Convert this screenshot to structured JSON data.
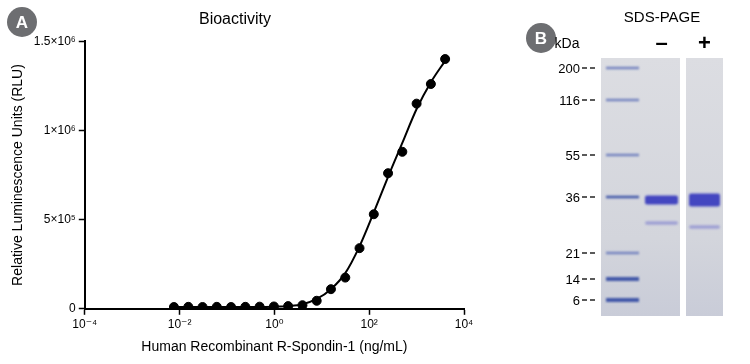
{
  "chart_data": {
    "type": "scatter",
    "panel": "A",
    "title": "Bioactivity",
    "x_label": "Human Recombinant R-Spondin-1 (ng/mL)",
    "y_label": "Relative Luminescence Units (RLU)",
    "log": "x",
    "grid": false,
    "color": "#000000",
    "marker": "circle",
    "x": [
      0.0076,
      0.0153,
      0.0305,
      0.061,
      0.122,
      0.244,
      0.488,
      0.977,
      1.95,
      3.91,
      7.81,
      15.6,
      31.3,
      62.5,
      125,
      250,
      500,
      1000,
      2000,
      4000
    ],
    "values": [
      10000,
      11000,
      10000,
      11000,
      10000,
      11000,
      12000,
      13000,
      15000,
      20000,
      45000,
      110000,
      175000,
      340000,
      530000,
      760000,
      880000,
      1150000,
      1260000,
      1400000
    ],
    "curve": {
      "type": "line",
      "line_style": "solid",
      "color": "#000000",
      "x": [
        0.0076,
        0.1,
        1,
        2,
        3.91,
        7.81,
        15.6,
        31.3,
        62.5,
        125,
        250,
        500,
        1000,
        2000,
        4000
      ],
      "values": [
        10000,
        10000,
        12000,
        15000,
        25000,
        55000,
        110000,
        200000,
        350000,
        540000,
        740000,
        930000,
        1120000,
        1270000,
        1390000
      ]
    },
    "xlim": [
      0.0001,
      10000
    ],
    "xticks": [
      {
        "value": 0.0001,
        "label": "10⁻⁴"
      },
      {
        "value": 0.01,
        "label": "10⁻²"
      },
      {
        "value": 1,
        "label": "10⁰"
      },
      {
        "value": 100,
        "label": "10²"
      },
      {
        "value": 10000,
        "label": "10⁴"
      }
    ],
    "ylim": [
      0,
      1500000
    ],
    "yticks": [
      0,
      {
        "value": 500000,
        "label": "5×10⁵"
      },
      {
        "value": 1000000,
        "label": "1×10⁶"
      },
      {
        "value": 1500000,
        "label": "1.5×10⁶"
      }
    ]
  },
  "gel": {
    "panel": "B",
    "title": "SDS-PAGE",
    "unit": "kDa",
    "markers": [
      200,
      116,
      55,
      36,
      21,
      14,
      6
    ],
    "lanes": [
      {
        "label": "–",
        "bands": [
          35,
          28
        ]
      },
      {
        "label": "+",
        "bands": [
          35,
          27
        ]
      }
    ]
  }
}
